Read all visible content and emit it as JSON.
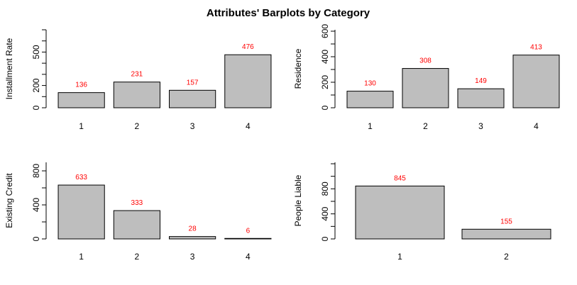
{
  "title": "Attributes' Barplots by Category",
  "style": {
    "bar_fill": "#bebebe",
    "bar_stroke": "#000000",
    "label_color": "#ff0000"
  },
  "chart_data": [
    {
      "type": "bar",
      "ylabel": "Installment Rate",
      "categories": [
        "1",
        "2",
        "3",
        "4"
      ],
      "values": [
        136,
        231,
        157,
        476
      ],
      "ylim": [
        0,
        700
      ],
      "yticks": [
        0,
        200,
        500
      ],
      "grid": false
    },
    {
      "type": "bar",
      "ylabel": "Residence",
      "categories": [
        "1",
        "2",
        "3",
        "4"
      ],
      "values": [
        130,
        308,
        149,
        413
      ],
      "ylim": [
        0,
        600
      ],
      "yticks": [
        0,
        200,
        400,
        600
      ],
      "grid": false
    },
    {
      "type": "bar",
      "ylabel": "Existing Credit",
      "categories": [
        "1",
        "2",
        "3",
        "4"
      ],
      "values": [
        633,
        333,
        28,
        6
      ],
      "ylim": [
        0,
        800
      ],
      "yticks": [
        0,
        400,
        800
      ],
      "grid": false
    },
    {
      "type": "bar",
      "ylabel": "People Liable",
      "categories": [
        "1",
        "2"
      ],
      "values": [
        845,
        155
      ],
      "ylim": [
        0,
        1200
      ],
      "yticks": [
        0,
        400,
        800
      ],
      "grid": false
    }
  ]
}
